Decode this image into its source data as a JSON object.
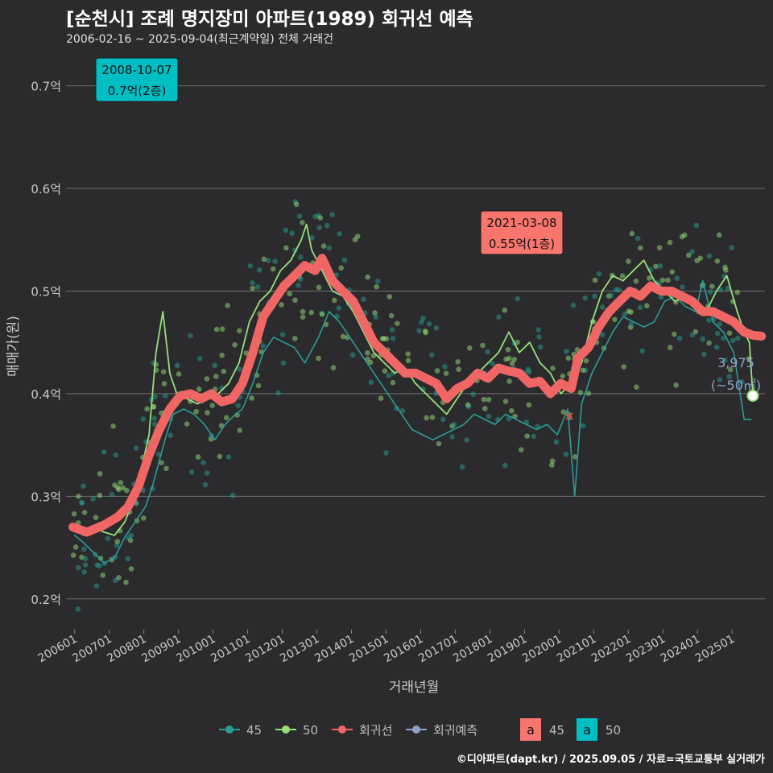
{
  "title": "[순천시] 조례 명지장미 아파트(1989) 회귀선 예측",
  "subtitle": "2006-02-16 ~ 2025-09-04(최근계약일) 전체 거래건",
  "caption": "©디아파트(dapt.kr) / 2025.09.05 / 자료=국토교통부 실거래가",
  "colors": {
    "background": "#2b2b2d",
    "grid": "#6e6e6e",
    "s45": "#2a9d96",
    "s50": "#97e07b",
    "regression": "#f06665",
    "forecast": "#8ea2c8",
    "label45": "#f8766d",
    "label50": "#00bfc4"
  },
  "chart_data": {
    "type": "line",
    "title": "[순천시] 조례 명지장미 아파트(1989) 회귀선 예측",
    "xlabel": "거래년월",
    "ylabel": "매매가(원)",
    "x_ticks": [
      "200601",
      "200701",
      "200801",
      "200901",
      "201001",
      "201101",
      "201201",
      "201301",
      "201401",
      "201501",
      "201601",
      "201701",
      "201801",
      "201901",
      "202001",
      "202101",
      "202201",
      "202301",
      "202401",
      "202501"
    ],
    "y_ticks": [
      {
        "value": 0.2,
        "label": "0.2억"
      },
      {
        "value": 0.3,
        "label": "0.3억"
      },
      {
        "value": 0.4,
        "label": "0.4억"
      },
      {
        "value": 0.5,
        "label": "0.5억"
      },
      {
        "value": 0.6,
        "label": "0.6억"
      },
      {
        "value": 0.7,
        "label": "0.7억"
      }
    ],
    "xlim": [
      2005.9,
      2026.1
    ],
    "ylim": [
      0.17,
      0.735
    ],
    "series": [
      {
        "name": "45",
        "type": "line",
        "points": [
          [
            2006.15,
            0.262
          ],
          [
            2006.4,
            0.255
          ],
          [
            2006.7,
            0.245
          ],
          [
            2007.0,
            0.235
          ],
          [
            2007.3,
            0.24
          ],
          [
            2007.6,
            0.26
          ],
          [
            2007.9,
            0.275
          ],
          [
            2008.2,
            0.29
          ],
          [
            2008.4,
            0.31
          ],
          [
            2008.6,
            0.335
          ],
          [
            2008.8,
            0.36
          ],
          [
            2009.0,
            0.38
          ],
          [
            2009.3,
            0.385
          ],
          [
            2009.6,
            0.38
          ],
          [
            2009.9,
            0.37
          ],
          [
            2010.2,
            0.355
          ],
          [
            2010.5,
            0.37
          ],
          [
            2010.8,
            0.38
          ],
          [
            2011.0,
            0.385
          ],
          [
            2011.3,
            0.41
          ],
          [
            2011.6,
            0.44
          ],
          [
            2011.9,
            0.455
          ],
          [
            2012.2,
            0.45
          ],
          [
            2012.5,
            0.445
          ],
          [
            2012.8,
            0.43
          ],
          [
            2013.2,
            0.455
          ],
          [
            2013.5,
            0.48
          ],
          [
            2013.8,
            0.47
          ],
          [
            2014.1,
            0.455
          ],
          [
            2014.4,
            0.44
          ],
          [
            2014.7,
            0.425
          ],
          [
            2015.0,
            0.41
          ],
          [
            2015.3,
            0.395
          ],
          [
            2015.6,
            0.38
          ],
          [
            2015.9,
            0.365
          ],
          [
            2016.2,
            0.36
          ],
          [
            2016.5,
            0.355
          ],
          [
            2016.8,
            0.36
          ],
          [
            2017.1,
            0.365
          ],
          [
            2017.4,
            0.37
          ],
          [
            2017.7,
            0.38
          ],
          [
            2018.0,
            0.375
          ],
          [
            2018.3,
            0.37
          ],
          [
            2018.6,
            0.38
          ],
          [
            2018.9,
            0.375
          ],
          [
            2019.2,
            0.37
          ],
          [
            2019.5,
            0.365
          ],
          [
            2019.8,
            0.37
          ],
          [
            2020.1,
            0.36
          ],
          [
            2020.4,
            0.385
          ],
          [
            2020.6,
            0.3
          ],
          [
            2020.8,
            0.39
          ],
          [
            2021.1,
            0.42
          ],
          [
            2021.4,
            0.44
          ],
          [
            2021.7,
            0.46
          ],
          [
            2022.0,
            0.475
          ],
          [
            2022.3,
            0.47
          ],
          [
            2022.6,
            0.465
          ],
          [
            2022.9,
            0.47
          ],
          [
            2023.2,
            0.49
          ],
          [
            2023.5,
            0.495
          ],
          [
            2023.8,
            0.485
          ],
          [
            2024.1,
            0.48
          ],
          [
            2024.3,
            0.51
          ],
          [
            2024.6,
            0.47
          ],
          [
            2024.9,
            0.46
          ],
          [
            2025.2,
            0.44
          ],
          [
            2025.5,
            0.375
          ],
          [
            2025.7,
            0.375
          ]
        ]
      },
      {
        "name": "50",
        "type": "line",
        "points": [
          [
            2006.15,
            0.268
          ],
          [
            2006.4,
            0.262
          ],
          [
            2006.7,
            0.27
          ],
          [
            2007.0,
            0.265
          ],
          [
            2007.3,
            0.262
          ],
          [
            2007.6,
            0.275
          ],
          [
            2007.9,
            0.3
          ],
          [
            2008.1,
            0.33
          ],
          [
            2008.3,
            0.36
          ],
          [
            2008.5,
            0.44
          ],
          [
            2008.7,
            0.48
          ],
          [
            2008.9,
            0.42
          ],
          [
            2009.1,
            0.4
          ],
          [
            2009.4,
            0.395
          ],
          [
            2009.7,
            0.39
          ],
          [
            2010.0,
            0.395
          ],
          [
            2010.3,
            0.4
          ],
          [
            2010.6,
            0.41
          ],
          [
            2010.9,
            0.43
          ],
          [
            2011.2,
            0.47
          ],
          [
            2011.5,
            0.49
          ],
          [
            2011.8,
            0.5
          ],
          [
            2012.1,
            0.52
          ],
          [
            2012.4,
            0.53
          ],
          [
            2012.7,
            0.55
          ],
          [
            2012.85,
            0.565
          ],
          [
            2013.0,
            0.54
          ],
          [
            2013.3,
            0.52
          ],
          [
            2013.6,
            0.5
          ],
          [
            2013.9,
            0.495
          ],
          [
            2014.2,
            0.48
          ],
          [
            2014.5,
            0.46
          ],
          [
            2014.8,
            0.44
          ],
          [
            2015.1,
            0.43
          ],
          [
            2015.4,
            0.42
          ],
          [
            2015.7,
            0.425
          ],
          [
            2016.0,
            0.41
          ],
          [
            2016.3,
            0.4
          ],
          [
            2016.6,
            0.39
          ],
          [
            2016.9,
            0.38
          ],
          [
            2017.2,
            0.395
          ],
          [
            2017.5,
            0.41
          ],
          [
            2017.8,
            0.42
          ],
          [
            2018.1,
            0.43
          ],
          [
            2018.4,
            0.44
          ],
          [
            2018.7,
            0.46
          ],
          [
            2019.0,
            0.44
          ],
          [
            2019.3,
            0.45
          ],
          [
            2019.6,
            0.43
          ],
          [
            2019.9,
            0.42
          ],
          [
            2020.2,
            0.4
          ],
          [
            2020.5,
            0.41
          ],
          [
            2020.8,
            0.43
          ],
          [
            2021.1,
            0.47
          ],
          [
            2021.4,
            0.5
          ],
          [
            2021.7,
            0.515
          ],
          [
            2022.0,
            0.51
          ],
          [
            2022.3,
            0.52
          ],
          [
            2022.6,
            0.53
          ],
          [
            2022.9,
            0.51
          ],
          [
            2023.2,
            0.5
          ],
          [
            2023.5,
            0.49
          ],
          [
            2023.8,
            0.495
          ],
          [
            2024.1,
            0.49
          ],
          [
            2024.4,
            0.48
          ],
          [
            2024.7,
            0.5
          ],
          [
            2025.0,
            0.515
          ],
          [
            2025.3,
            0.48
          ],
          [
            2025.5,
            0.46
          ],
          [
            2025.65,
            0.45
          ],
          [
            2025.75,
            0.398
          ]
        ]
      },
      {
        "name": "회귀선",
        "type": "line",
        "points": [
          [
            2006.1,
            0.27
          ],
          [
            2006.5,
            0.265
          ],
          [
            2007.0,
            0.272
          ],
          [
            2007.4,
            0.28
          ],
          [
            2007.7,
            0.29
          ],
          [
            2008.0,
            0.31
          ],
          [
            2008.3,
            0.34
          ],
          [
            2008.6,
            0.365
          ],
          [
            2008.9,
            0.385
          ],
          [
            2009.2,
            0.398
          ],
          [
            2009.5,
            0.4
          ],
          [
            2009.8,
            0.395
          ],
          [
            2010.1,
            0.4
          ],
          [
            2010.4,
            0.392
          ],
          [
            2010.7,
            0.395
          ],
          [
            2011.0,
            0.41
          ],
          [
            2011.3,
            0.44
          ],
          [
            2011.6,
            0.475
          ],
          [
            2011.9,
            0.49
          ],
          [
            2012.2,
            0.505
          ],
          [
            2012.5,
            0.515
          ],
          [
            2012.8,
            0.525
          ],
          [
            2013.1,
            0.52
          ],
          [
            2013.3,
            0.532
          ],
          [
            2013.6,
            0.51
          ],
          [
            2013.9,
            0.5
          ],
          [
            2014.2,
            0.49
          ],
          [
            2014.5,
            0.47
          ],
          [
            2014.8,
            0.45
          ],
          [
            2015.1,
            0.44
          ],
          [
            2015.4,
            0.43
          ],
          [
            2015.7,
            0.42
          ],
          [
            2016.0,
            0.42
          ],
          [
            2016.3,
            0.415
          ],
          [
            2016.6,
            0.41
          ],
          [
            2016.9,
            0.395
          ],
          [
            2017.2,
            0.405
          ],
          [
            2017.5,
            0.41
          ],
          [
            2017.8,
            0.42
          ],
          [
            2018.1,
            0.415
          ],
          [
            2018.4,
            0.425
          ],
          [
            2018.7,
            0.422
          ],
          [
            2019.0,
            0.42
          ],
          [
            2019.3,
            0.41
          ],
          [
            2019.6,
            0.412
          ],
          [
            2019.9,
            0.4
          ],
          [
            2020.2,
            0.41
          ],
          [
            2020.5,
            0.405
          ],
          [
            2020.7,
            0.435
          ],
          [
            2021.0,
            0.445
          ],
          [
            2021.3,
            0.465
          ],
          [
            2021.6,
            0.48
          ],
          [
            2021.9,
            0.49
          ],
          [
            2022.2,
            0.5
          ],
          [
            2022.5,
            0.495
          ],
          [
            2022.8,
            0.505
          ],
          [
            2023.1,
            0.5
          ],
          [
            2023.4,
            0.5
          ],
          [
            2023.7,
            0.495
          ],
          [
            2024.0,
            0.49
          ],
          [
            2024.3,
            0.48
          ],
          [
            2024.6,
            0.48
          ],
          [
            2024.9,
            0.475
          ],
          [
            2025.2,
            0.47
          ],
          [
            2025.5,
            0.46
          ],
          [
            2025.75,
            0.457
          ],
          [
            2026.0,
            0.456
          ]
        ]
      }
    ],
    "forecast": {
      "name": "회귀예측",
      "x": 2025.75,
      "y": 0.398,
      "value_label": "3,975",
      "area_label": "(~50㎡)"
    },
    "annotations": [
      {
        "date": "2008-10-07",
        "value": "0.7억(2층)",
        "series": "50",
        "x": 2008.77,
        "y": 0.7
      },
      {
        "date": "2021-03-08",
        "value": "0.55억(1층)",
        "series": "45",
        "x": 2021.18,
        "y": 0.55
      }
    ],
    "legend": {
      "position": "bottom",
      "line_items": [
        "45",
        "50",
        "회귀선",
        "회귀예측"
      ],
      "label_items": [
        {
          "glyph": "a",
          "name": "45"
        },
        {
          "glyph": "a",
          "name": "50"
        }
      ]
    }
  }
}
